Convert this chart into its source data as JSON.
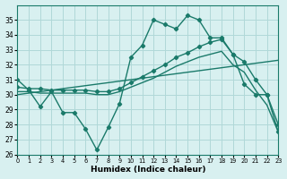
{
  "xlabel": "Humidex (Indice chaleur)",
  "xlim": [
    0,
    23
  ],
  "ylim": [
    26,
    36
  ],
  "yticks": [
    26,
    27,
    28,
    29,
    30,
    31,
    32,
    33,
    34,
    35
  ],
  "xticks": [
    0,
    1,
    2,
    3,
    4,
    5,
    6,
    7,
    8,
    9,
    10,
    11,
    12,
    13,
    14,
    15,
    16,
    17,
    18,
    19,
    20,
    21,
    22,
    23
  ],
  "bg_color": "#d8f0f0",
  "grid_color": "#b0d8d8",
  "line_color": "#1a7a6a",
  "line1_x": [
    0,
    1,
    2,
    3,
    4,
    5,
    6,
    7,
    8,
    9,
    10,
    11,
    12,
    13,
    14,
    15,
    16,
    17,
    18,
    19,
    20,
    21,
    22,
    23
  ],
  "line1_y": [
    31.0,
    30.3,
    29.2,
    30.2,
    28.8,
    28.8,
    27.7,
    26.3,
    27.8,
    29.4,
    32.5,
    33.3,
    35.0,
    34.7,
    34.4,
    35.3,
    35.0,
    33.8,
    33.8,
    32.7,
    30.7,
    30.0,
    30.0,
    27.5
  ],
  "line2_x": [
    0,
    1,
    2,
    3,
    4,
    5,
    6,
    7,
    8,
    9,
    10,
    11,
    12,
    13,
    14,
    15,
    16,
    17,
    18,
    19,
    20,
    21,
    22,
    23
  ],
  "line2_y": [
    30.5,
    30.4,
    30.4,
    30.3,
    30.3,
    30.3,
    30.3,
    30.2,
    30.2,
    30.4,
    30.8,
    31.2,
    31.6,
    32.0,
    32.5,
    32.8,
    33.2,
    33.5,
    33.7,
    32.7,
    32.2,
    31.0,
    30.0,
    28.0
  ],
  "line3_x": [
    0,
    1,
    2,
    3,
    4,
    5,
    6,
    7,
    8,
    9,
    10,
    11,
    12,
    13,
    14,
    15,
    16,
    17,
    18,
    19,
    20,
    21,
    22,
    23
  ],
  "line3_y": [
    30.2,
    30.2,
    30.1,
    30.1,
    30.1,
    30.1,
    30.1,
    30.0,
    30.0,
    30.2,
    30.5,
    30.8,
    31.1,
    31.5,
    31.9,
    32.2,
    32.5,
    32.7,
    32.9,
    32.0,
    31.5,
    30.3,
    29.3,
    27.5
  ],
  "line4_x": [
    0,
    23
  ],
  "line4_y": [
    30.0,
    32.3
  ]
}
